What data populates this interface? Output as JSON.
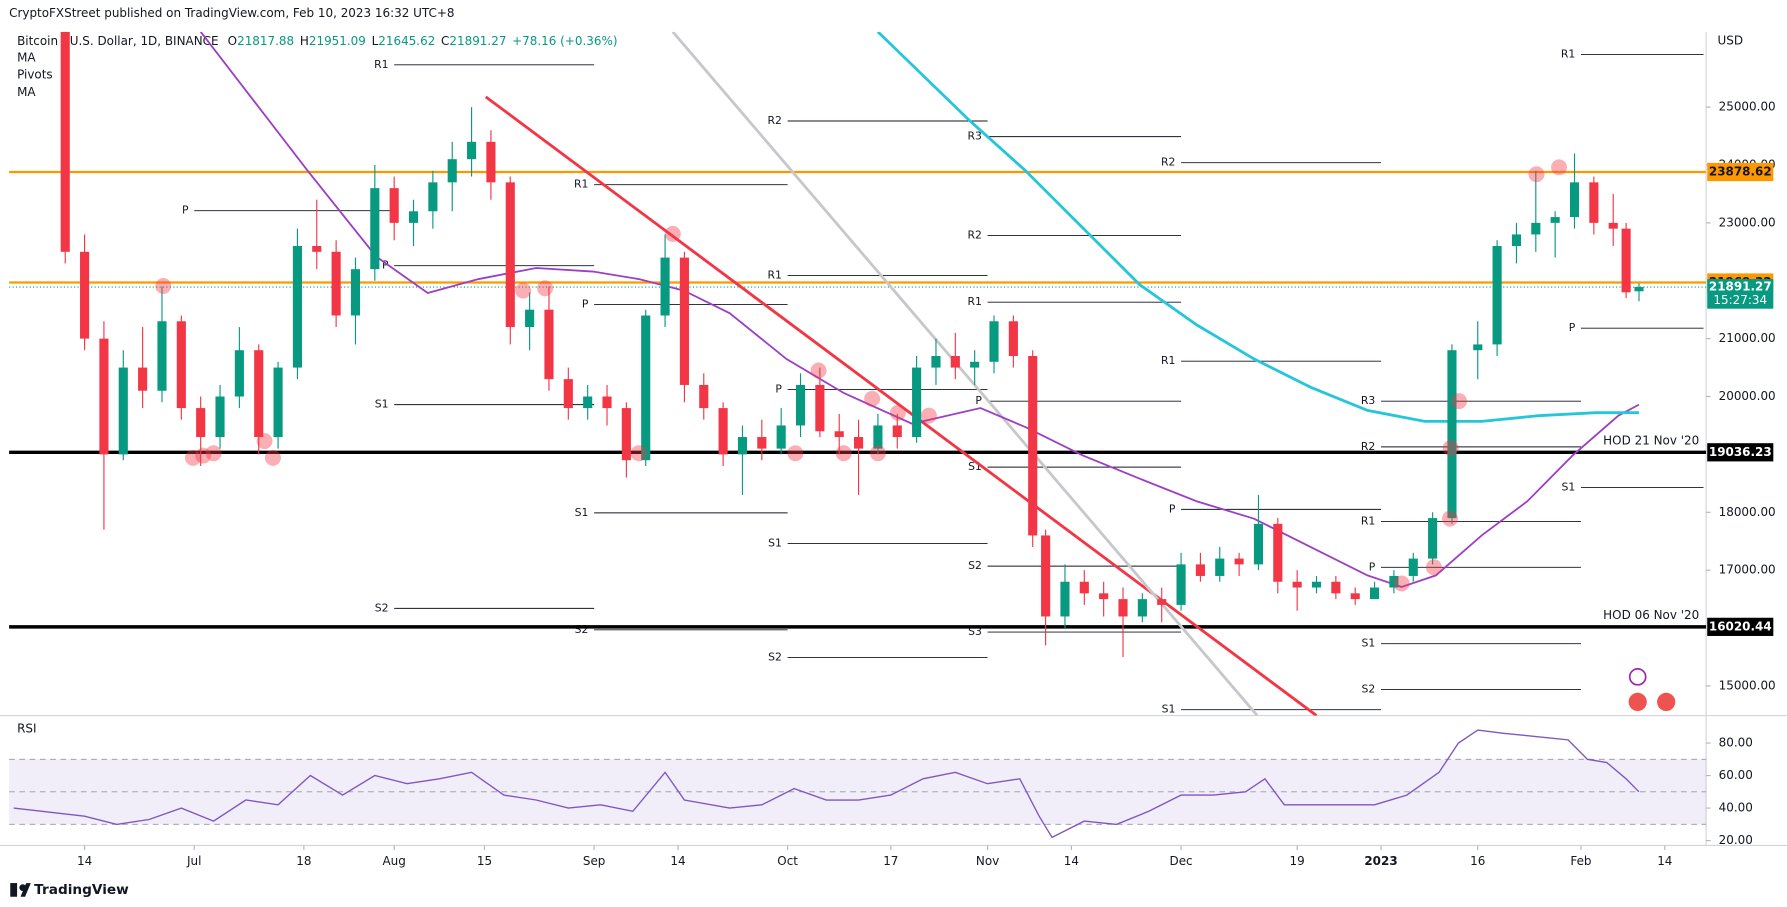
{
  "header": {
    "publisher": "CryptoFXStreet published on TradingView.com, Feb 10, 2023 16:32 UTC+8",
    "symbol": "Bitcoin / U.S. Dollar, 1D, BINANCE",
    "legend_labels": [
      "O",
      "H",
      "L",
      "C"
    ],
    "change_label": "+78.16 (+0.36%)",
    "indicators": [
      "MA",
      "Pivots",
      "MA"
    ],
    "currency": "USD",
    "countdown": "15:27:34",
    "footer": "TradingView"
  },
  "chart_data": {
    "type": "candlestick",
    "up_color": "#089981",
    "down_color": "#f23645",
    "xlim": [
      -11.7,
      251.4
    ],
    "ylim": [
      14488,
      26299
    ],
    "grid": false,
    "xticks": [
      {
        "value": 0,
        "label": "14"
      },
      {
        "value": 17,
        "label": "Jul"
      },
      {
        "value": 34,
        "label": "18"
      },
      {
        "value": 48,
        "label": "Aug"
      },
      {
        "value": 62,
        "label": "15"
      },
      {
        "value": 79,
        "label": "Sep"
      },
      {
        "value": 92,
        "label": "14"
      },
      {
        "value": 109,
        "label": "Oct"
      },
      {
        "value": 125,
        "label": "17"
      },
      {
        "value": 140,
        "label": "Nov"
      },
      {
        "value": 153,
        "label": "14"
      },
      {
        "value": 170,
        "label": "Dec"
      },
      {
        "value": 188,
        "label": "19"
      },
      {
        "value": 201,
        "label": "2023"
      },
      {
        "value": 216,
        "label": "16"
      },
      {
        "value": 232,
        "label": "Feb"
      },
      {
        "value": 245,
        "label": "14"
      }
    ],
    "yticks": [
      {
        "value": 25000,
        "label": "25000.00"
      },
      {
        "value": 24000,
        "label": "24000.00"
      },
      {
        "value": 23000,
        "label": "23000.00"
      },
      {
        "value": 21000,
        "label": "21000.00"
      },
      {
        "value": 20000,
        "label": "20000.00"
      },
      {
        "value": 18000,
        "label": "18000.00"
      },
      {
        "value": 17000,
        "label": "17000.00"
      },
      {
        "value": 15000,
        "label": "15000.00"
      }
    ],
    "x": [
      -3,
      0,
      3,
      6,
      9,
      12,
      15,
      18,
      21,
      24,
      27,
      30,
      33,
      36,
      39,
      42,
      45,
      48,
      51,
      54,
      57,
      60,
      63,
      66,
      69,
      72,
      75,
      78,
      81,
      84,
      87,
      90,
      93,
      96,
      99,
      102,
      105,
      108,
      111,
      114,
      117,
      120,
      123,
      126,
      129,
      132,
      135,
      138,
      141,
      144,
      147,
      149,
      152,
      155,
      158,
      161,
      164,
      167,
      170,
      173,
      176,
      179,
      182,
      185,
      188,
      191,
      194,
      197,
      200,
      203,
      206,
      209,
      212,
      216,
      219,
      222,
      225,
      228,
      231,
      234,
      237,
      239,
      241
    ],
    "ohlc": [
      [
        26300,
        26500,
        22300,
        22500
      ],
      [
        22500,
        22800,
        20800,
        21000
      ],
      [
        21000,
        21300,
        17700,
        19000
      ],
      [
        19000,
        20800,
        18900,
        20500
      ],
      [
        20500,
        21200,
        19800,
        20100
      ],
      [
        20100,
        21900,
        19900,
        21300
      ],
      [
        21300,
        21400,
        19600,
        19800
      ],
      [
        19800,
        20000,
        18800,
        19300
      ],
      [
        19300,
        20200,
        19100,
        20000
      ],
      [
        20000,
        21200,
        19800,
        20800
      ],
      [
        20800,
        20900,
        19000,
        19300
      ],
      [
        19300,
        20600,
        19100,
        20500
      ],
      [
        20500,
        22900,
        20300,
        22600
      ],
      [
        22600,
        23400,
        22200,
        22500
      ],
      [
        22500,
        22700,
        21200,
        21400
      ],
      [
        21400,
        22400,
        20900,
        22200
      ],
      [
        22200,
        24000,
        22000,
        23600
      ],
      [
        23600,
        23800,
        22700,
        23000
      ],
      [
        23000,
        23400,
        22600,
        23200
      ],
      [
        23200,
        23900,
        22900,
        23700
      ],
      [
        23700,
        24400,
        23200,
        24100
      ],
      [
        24100,
        25000,
        23800,
        24400
      ],
      [
        24400,
        24600,
        23400,
        23700
      ],
      [
        23700,
        23800,
        20900,
        21200
      ],
      [
        21200,
        21800,
        20800,
        21500
      ],
      [
        21500,
        21900,
        20100,
        20300
      ],
      [
        20300,
        20500,
        19600,
        19800
      ],
      [
        19800,
        20200,
        19600,
        20000
      ],
      [
        20000,
        20200,
        19500,
        19800
      ],
      [
        19800,
        19900,
        18600,
        18900
      ],
      [
        18900,
        21500,
        18800,
        21400
      ],
      [
        21400,
        22800,
        21200,
        22400
      ],
      [
        22400,
        22500,
        19900,
        20200
      ],
      [
        20200,
        20400,
        19600,
        19800
      ],
      [
        19800,
        19900,
        18800,
        19000
      ],
      [
        19000,
        19500,
        18300,
        19300
      ],
      [
        19300,
        19600,
        18900,
        19100
      ],
      [
        19100,
        19800,
        19000,
        19500
      ],
      [
        19500,
        20400,
        19300,
        20200
      ],
      [
        20200,
        20500,
        19300,
        19400
      ],
      [
        19400,
        19700,
        19000,
        19300
      ],
      [
        19300,
        19600,
        18300,
        19100
      ],
      [
        19100,
        19700,
        19000,
        19500
      ],
      [
        19500,
        19700,
        19100,
        19300
      ],
      [
        19300,
        20700,
        19200,
        20500
      ],
      [
        20500,
        21000,
        20200,
        20700
      ],
      [
        20700,
        21100,
        20300,
        20500
      ],
      [
        20500,
        20800,
        20200,
        20600
      ],
      [
        20600,
        21400,
        20400,
        21300
      ],
      [
        21300,
        21400,
        20500,
        20700
      ],
      [
        20700,
        20800,
        17400,
        17600
      ],
      [
        17600,
        17700,
        15700,
        16200
      ],
      [
        16200,
        17100,
        16000,
        16800
      ],
      [
        16800,
        17000,
        16400,
        16600
      ],
      [
        16600,
        16800,
        16200,
        16500
      ],
      [
        16500,
        16700,
        15500,
        16200
      ],
      [
        16200,
        16600,
        16100,
        16500
      ],
      [
        16500,
        16700,
        16100,
        16400
      ],
      [
        16400,
        17300,
        16300,
        17100
      ],
      [
        17100,
        17300,
        16800,
        16900
      ],
      [
        16900,
        17400,
        16800,
        17200
      ],
      [
        17200,
        17300,
        16900,
        17100
      ],
      [
        17100,
        18300,
        17000,
        17800
      ],
      [
        17800,
        17900,
        16600,
        16800
      ],
      [
        16800,
        17000,
        16300,
        16700
      ],
      [
        16700,
        16900,
        16600,
        16800
      ],
      [
        16800,
        16900,
        16500,
        16600
      ],
      [
        16600,
        16700,
        16400,
        16500
      ],
      [
        16500,
        16800,
        16500,
        16700
      ],
      [
        16700,
        17000,
        16600,
        16900
      ],
      [
        16900,
        17300,
        16800,
        17200
      ],
      [
        17200,
        18000,
        17100,
        17900
      ],
      [
        17900,
        20900,
        17800,
        20800
      ],
      [
        20800,
        21300,
        20300,
        20900
      ],
      [
        20900,
        22700,
        20700,
        22600
      ],
      [
        22600,
        23000,
        22300,
        22800
      ],
      [
        22800,
        23900,
        22500,
        23000
      ],
      [
        23000,
        23200,
        22400,
        23100
      ],
      [
        23100,
        24200,
        22900,
        23700
      ],
      [
        23700,
        23800,
        22800,
        23000
      ],
      [
        23000,
        23500,
        22600,
        22900
      ],
      [
        22900,
        23000,
        21700,
        21800
      ],
      [
        21817.88,
        21951.09,
        21645.62,
        21891.27
      ]
    ],
    "moving_averages": [
      {
        "color": "#9c3fc4",
        "x": [
          18,
          34.6,
          45.2,
          53.2,
          61.1,
          70,
          78.8,
          85.9,
          92.9,
          100,
          108.8,
          117.7,
          128.3,
          138.9,
          145.9,
          154.8,
          163.6,
          172.4,
          181.3,
          190.1,
          198.9,
          204.2,
          209.5,
          216.6,
          223.7,
          230.7,
          237.8,
          241
        ],
        "values": [
          26300,
          23900,
          22420,
          21790,
          22030,
          22220,
          22160,
          22030,
          21830,
          21440,
          20650,
          20060,
          19530,
          19800,
          19470,
          18980,
          18580,
          18190,
          17890,
          17400,
          16910,
          16710,
          16910,
          17600,
          18190,
          18980,
          19670,
          19860
        ]
      },
      {
        "color": "#26c6da",
        "x": [
          123,
          137.1,
          145.9,
          154.8,
          163.6,
          172.4,
          181.3,
          190.1,
          198.9,
          207.8,
          216.6,
          225.4,
          234.3,
          241
        ],
        "values": [
          26300,
          24780,
          23900,
          22910,
          21930,
          21240,
          20650,
          20160,
          19760,
          19570,
          19570,
          19670,
          19720,
          19720
        ]
      }
    ],
    "trendlines": [
      {
        "color": "#f23645",
        "x": [
          62.2,
          191
        ],
        "values": [
          25177,
          14488
        ]
      },
      {
        "color": "#c8c8cc",
        "x": [
          91.2,
          181.8
        ],
        "values": [
          26300,
          14490
        ]
      }
    ],
    "levels": [
      {
        "value": 23878.62,
        "color": "#ff9800"
      },
      {
        "value": 21969.32,
        "color": "#ff9800"
      },
      {
        "value": 19036.23,
        "color": "#000000",
        "label": "HOD 21 Nov '20"
      },
      {
        "value": 16020.44,
        "color": "#000000",
        "label": "HOD 06 Nov '20"
      }
    ],
    "pivots": [
      {
        "label": "P",
        "from": 17,
        "to": 48,
        "value": 23210
      },
      {
        "label": "R1",
        "from": 48,
        "to": 79,
        "value": 25730
      },
      {
        "label": "P",
        "from": 48,
        "to": 79,
        "value": 22260
      },
      {
        "label": "S1",
        "from": 48,
        "to": 79,
        "value": 19860
      },
      {
        "label": "S2",
        "from": 48,
        "to": 79,
        "value": 16340
      },
      {
        "label": "R1",
        "from": 79,
        "to": 109,
        "value": 23660
      },
      {
        "label": "P",
        "from": 79,
        "to": 109,
        "value": 21590
      },
      {
        "label": "S1",
        "from": 79,
        "to": 109,
        "value": 17990
      },
      {
        "label": "S2",
        "from": 79,
        "to": 109,
        "value": 15970
      },
      {
        "label": "R2",
        "from": 109,
        "to": 140,
        "value": 24760
      },
      {
        "label": "R1",
        "from": 109,
        "to": 140,
        "value": 22090
      },
      {
        "label": "P",
        "from": 109,
        "to": 140,
        "value": 20120
      },
      {
        "label": "S1",
        "from": 109,
        "to": 140,
        "value": 17460
      },
      {
        "label": "S2",
        "from": 109,
        "to": 140,
        "value": 15490
      },
      {
        "label": "R3",
        "from": 140,
        "to": 170,
        "value": 24490
      },
      {
        "label": "R2",
        "from": 140,
        "to": 170,
        "value": 22780
      },
      {
        "label": "R1",
        "from": 140,
        "to": 170,
        "value": 21630
      },
      {
        "label": "P",
        "from": 140,
        "to": 170,
        "value": 19920
      },
      {
        "label": "S1",
        "from": 140,
        "to": 170,
        "value": 18780
      },
      {
        "label": "S2",
        "from": 140,
        "to": 170,
        "value": 17070
      },
      {
        "label": "S3",
        "from": 140,
        "to": 170,
        "value": 15930
      },
      {
        "label": "R2",
        "from": 170,
        "to": 201,
        "value": 24040
      },
      {
        "label": "R1",
        "from": 170,
        "to": 201,
        "value": 20610
      },
      {
        "label": "P",
        "from": 170,
        "to": 201,
        "value": 18050
      },
      {
        "label": "S1",
        "from": 170,
        "to": 201,
        "value": 14590
      },
      {
        "label": "R3",
        "from": 201,
        "to": 232,
        "value": 19920
      },
      {
        "label": "R2",
        "from": 201,
        "to": 232,
        "value": 19130
      },
      {
        "label": "R1",
        "from": 201,
        "to": 232,
        "value": 17840
      },
      {
        "label": "P",
        "from": 201,
        "to": 232,
        "value": 17050
      },
      {
        "label": "S1",
        "from": 201,
        "to": 232,
        "value": 15730
      },
      {
        "label": "S2",
        "from": 201,
        "to": 232,
        "value": 14940
      },
      {
        "label": "R1",
        "from": 232,
        "to": 251,
        "value": 25910
      },
      {
        "label": "P",
        "from": 232,
        "to": 251,
        "value": 21180
      },
      {
        "label": "S1",
        "from": 232,
        "to": 251,
        "value": 18430
      }
    ],
    "highlights": {
      "x": [
        12.2,
        16.8,
        18.4,
        20,
        27.9,
        29.2,
        68,
        71.4,
        85.9,
        91.2,
        110.2,
        113.8,
        117.7,
        122.1,
        123,
        126.1,
        130.9,
        204.2,
        209.2,
        211.7,
        211.8,
        213.1,
        225.1,
        228.6
      ],
      "values": [
        21910,
        18940,
        18980,
        19020,
        19230,
        18940,
        21830,
        21870,
        19020,
        22810,
        19020,
        20450,
        19020,
        19960,
        19020,
        19720,
        19670,
        16770,
        17050,
        17890,
        19110,
        19920,
        23840,
        23960
      ]
    },
    "rsi": {
      "name": "RSI",
      "color": "#7e57c2",
      "ylim": [
        17,
        95.5
      ],
      "yticks": [
        {
          "value": 80,
          "label": "80.00"
        },
        {
          "value": 60,
          "label": "60.00"
        },
        {
          "value": 40,
          "label": "40.00"
        },
        {
          "value": 20,
          "label": "20.00"
        }
      ],
      "band": [
        30,
        70
      ],
      "mid": 50,
      "x": [
        -11,
        0,
        5,
        10,
        15,
        20,
        25,
        30,
        35,
        40,
        45,
        50,
        55,
        60,
        65,
        70,
        75,
        80,
        85,
        90,
        93,
        100,
        105,
        110,
        115,
        120,
        125,
        130,
        135,
        140,
        145,
        148,
        150,
        155,
        160,
        165,
        170,
        175,
        180,
        183,
        186,
        190,
        195,
        200,
        205,
        210,
        213,
        216,
        220,
        225,
        230,
        233,
        236,
        239,
        241
      ],
      "values": [
        40,
        35,
        30,
        33,
        40,
        32,
        45,
        42,
        60,
        48,
        60,
        55,
        58,
        62,
        48,
        45,
        40,
        42,
        38,
        62,
        45,
        40,
        42,
        52,
        45,
        45,
        48,
        58,
        62,
        55,
        58,
        35,
        22,
        32,
        30,
        38,
        48,
        48,
        50,
        58,
        42,
        42,
        42,
        42,
        48,
        62,
        80,
        88,
        86,
        84,
        82,
        70,
        68,
        58,
        50
      ]
    }
  }
}
